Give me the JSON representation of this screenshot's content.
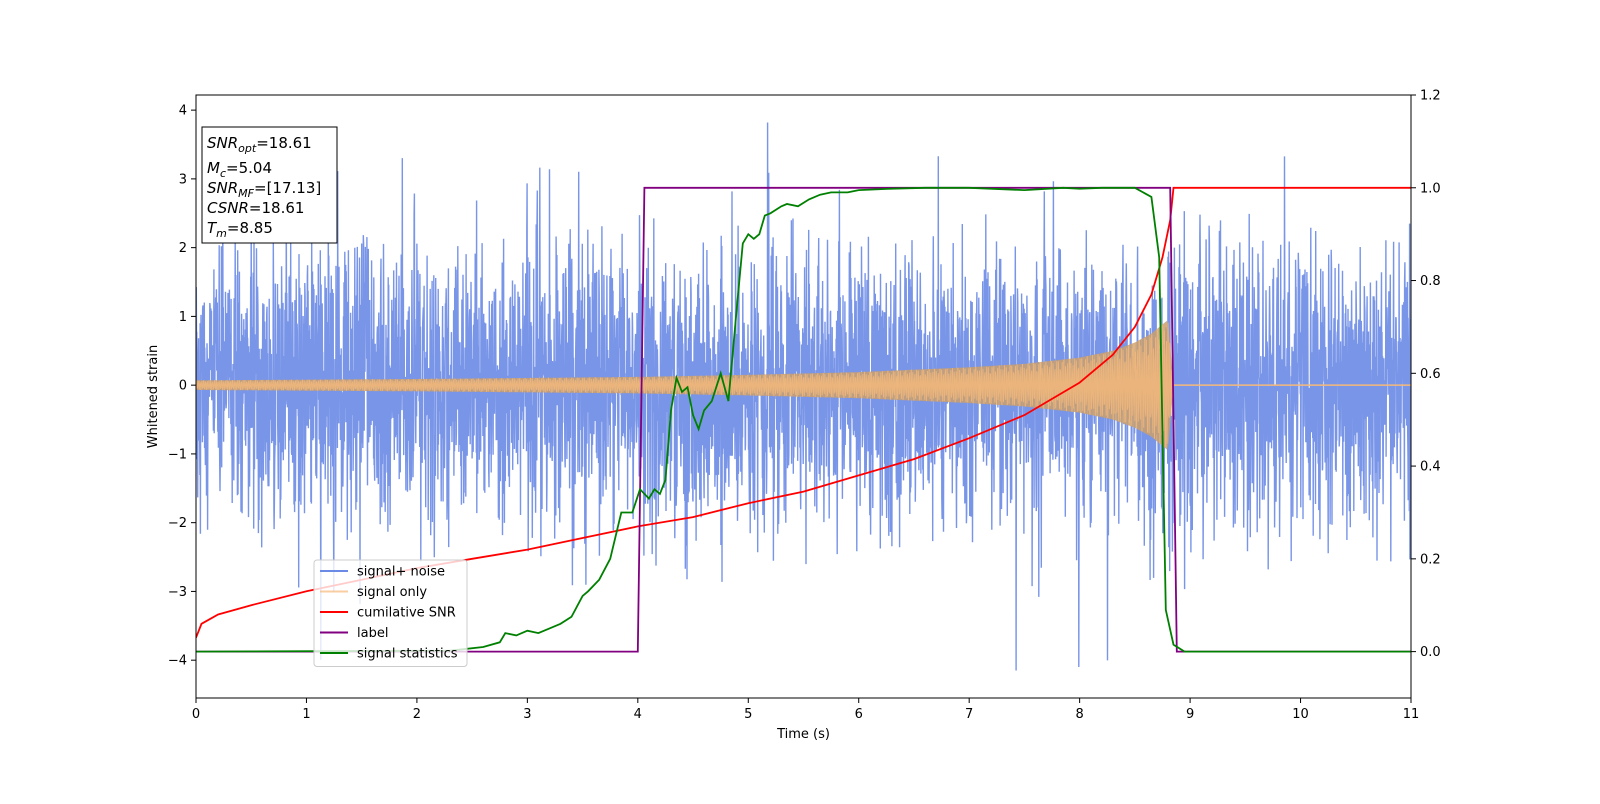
{
  "chart_data": {
    "type": "line",
    "xlabel": "Time (s)",
    "ylabel": "Whitened strain",
    "y2label": "",
    "xlim": [
      0,
      11
    ],
    "ylim": [
      -4.55,
      4.22
    ],
    "y2lim": [
      -0.1,
      1.2
    ],
    "xticks": [
      "0",
      "1",
      "2",
      "3",
      "4",
      "5",
      "6",
      "7",
      "8",
      "9",
      "10",
      "11"
    ],
    "yticks": [
      "−4",
      "−3",
      "−2",
      "−1",
      "0",
      "1",
      "2",
      "3",
      "4"
    ],
    "y2ticks": [
      "0.0",
      "0.2",
      "0.4",
      "0.6",
      "0.8",
      "1.0",
      "1.2"
    ],
    "legend_position": "lower-left",
    "grid": false,
    "info_box": {
      "lines": [
        {
          "italic": "SNR",
          "sub": "opt",
          "rest": "=18.61"
        },
        {
          "italic": "M",
          "sub": "c",
          "rest": "=5.04"
        },
        {
          "italic": "SNR",
          "sub": "MF",
          "rest": "=[17.13]"
        },
        {
          "italic": "CSNR",
          "sub": "",
          "rest": "=18.61"
        },
        {
          "italic": "T",
          "sub": "m",
          "rest": "=8.85"
        }
      ]
    },
    "series": [
      {
        "name": "signal+ noise",
        "axis": "left",
        "color": "#6a8ae6",
        "kind": "noise",
        "amplitude_std": 1.0,
        "x_range": [
          0,
          11
        ]
      },
      {
        "name": "signal only",
        "axis": "left",
        "color": "#f5b97a",
        "kind": "chirp_envelope",
        "merger_time": 8.85,
        "envelope": [
          [
            0,
            0.07
          ],
          [
            2,
            0.09
          ],
          [
            4,
            0.12
          ],
          [
            5,
            0.15
          ],
          [
            6,
            0.19
          ],
          [
            7,
            0.26
          ],
          [
            7.5,
            0.31
          ],
          [
            8,
            0.4
          ],
          [
            8.3,
            0.5
          ],
          [
            8.5,
            0.62
          ],
          [
            8.65,
            0.75
          ],
          [
            8.8,
            0.95
          ],
          [
            8.85,
            0.0
          ],
          [
            11,
            0.0
          ]
        ]
      },
      {
        "name": "cumilative SNR",
        "axis": "right",
        "color": "#ff0000",
        "x": [
          0,
          0.05,
          0.2,
          0.5,
          1,
          1.5,
          2,
          2.5,
          3,
          3.5,
          4,
          4.5,
          5,
          5.5,
          6,
          6.5,
          7,
          7.5,
          8,
          8.3,
          8.5,
          8.65,
          8.75,
          8.82,
          8.85,
          11
        ],
        "y": [
          0.03,
          0.06,
          0.08,
          0.1,
          0.13,
          0.155,
          0.18,
          0.2,
          0.22,
          0.245,
          0.27,
          0.29,
          0.32,
          0.345,
          0.38,
          0.415,
          0.46,
          0.51,
          0.58,
          0.64,
          0.7,
          0.77,
          0.85,
          0.93,
          1.0,
          1.0
        ]
      },
      {
        "name": "label",
        "axis": "right",
        "color": "#800080",
        "x": [
          0,
          4.0,
          4.06,
          8.82,
          8.88,
          11
        ],
        "y": [
          0,
          0,
          1,
          1,
          0,
          0
        ]
      },
      {
        "name": "signal statistics",
        "axis": "right",
        "color": "#008000",
        "x": [
          0,
          2.3,
          2.6,
          2.75,
          2.8,
          2.9,
          3.0,
          3.1,
          3.2,
          3.3,
          3.4,
          3.5,
          3.55,
          3.65,
          3.75,
          3.85,
          3.95,
          4.02,
          4.1,
          4.15,
          4.2,
          4.25,
          4.3,
          4.35,
          4.4,
          4.45,
          4.5,
          4.55,
          4.6,
          4.67,
          4.75,
          4.82,
          4.9,
          4.95,
          5.0,
          5.05,
          5.1,
          5.15,
          5.2,
          5.3,
          5.35,
          5.45,
          5.55,
          5.65,
          5.75,
          5.9,
          6.0,
          6.3,
          6.6,
          7.0,
          7.5,
          7.85,
          8.0,
          8.2,
          8.5,
          8.65,
          8.72,
          8.78,
          8.85,
          8.95,
          11
        ],
        "y": [
          0,
          0.002,
          0.01,
          0.02,
          0.04,
          0.035,
          0.045,
          0.04,
          0.05,
          0.06,
          0.075,
          0.12,
          0.13,
          0.155,
          0.2,
          0.3,
          0.3,
          0.35,
          0.33,
          0.35,
          0.34,
          0.37,
          0.52,
          0.59,
          0.56,
          0.57,
          0.51,
          0.48,
          0.52,
          0.54,
          0.6,
          0.54,
          0.75,
          0.88,
          0.9,
          0.89,
          0.9,
          0.94,
          0.945,
          0.96,
          0.965,
          0.96,
          0.975,
          0.985,
          0.99,
          0.99,
          0.995,
          0.998,
          1.0,
          1.0,
          0.995,
          1.0,
          0.998,
          1.0,
          1.0,
          0.98,
          0.85,
          0.09,
          0.015,
          0.0,
          0.0
        ]
      }
    ]
  }
}
